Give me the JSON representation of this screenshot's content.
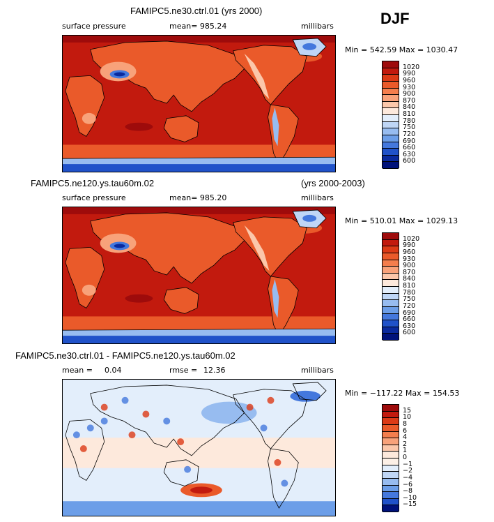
{
  "season": "DJF",
  "panels": [
    {
      "title": "FAMIPC5.ne30.ctrl.01 (yrs 2000)",
      "title_right": "",
      "left_label": "surface pressure",
      "center_label": "mean= 985.24",
      "right_label": "millibars",
      "minmax": "Min = 542.59 Max = 1030.47",
      "colorbar_levels": [
        "1020",
        "990",
        "960",
        "930",
        "900",
        "870",
        "840",
        "810",
        "780",
        "750",
        "720",
        "690",
        "660",
        "630",
        "600"
      ]
    },
    {
      "title": "FAMIPC5.ne120.ys.tau60m.02",
      "title_right": "(yrs 2000-2003)",
      "left_label": "surface pressure",
      "center_label": "mean= 985.20",
      "right_label": "millibars",
      "minmax": "Min = 510.01 Max = 1029.13",
      "colorbar_levels": [
        "1020",
        "990",
        "960",
        "930",
        "900",
        "870",
        "840",
        "810",
        "780",
        "750",
        "720",
        "690",
        "660",
        "630",
        "600"
      ]
    },
    {
      "title": "FAMIPC5.ne30.ctrl.01 - FAMIPC5.ne120.ys.tau60m.02",
      "title_right": "",
      "left_label": "mean =",
      "left_value": "0.04",
      "center_label": "rmse =",
      "center_value": "12.36",
      "right_label": "millibars",
      "minmax": "Min = −117.22 Max = 154.53",
      "colorbar_levels": [
        "15",
        "10",
        "8",
        "6",
        "4",
        "2",
        "1",
        "0",
        "−1",
        "−2",
        "−4",
        "−6",
        "−8",
        "−10",
        "−15"
      ]
    }
  ],
  "chart_data": [
    {
      "type": "heatmap",
      "title": "FAMIPC5.ne30.ctrl.01 (yrs 2000)",
      "variable": "surface pressure",
      "units": "millibars",
      "mean": 985.24,
      "min": 542.59,
      "max": 1030.47,
      "contour_levels": [
        600,
        630,
        660,
        690,
        720,
        750,
        780,
        810,
        840,
        870,
        900,
        930,
        960,
        990,
        1020
      ]
    },
    {
      "type": "heatmap",
      "title": "FAMIPC5.ne120.ys.tau60m.02 (yrs 2000-2003)",
      "variable": "surface pressure",
      "units": "millibars",
      "mean": 985.2,
      "min": 510.01,
      "max": 1029.13,
      "contour_levels": [
        600,
        630,
        660,
        690,
        720,
        750,
        780,
        810,
        840,
        870,
        900,
        930,
        960,
        990,
        1020
      ]
    },
    {
      "type": "heatmap",
      "title": "FAMIPC5.ne30.ctrl.01 - FAMIPC5.ne120.ys.tau60m.02",
      "units": "millibars",
      "mean": 0.04,
      "rmse": 12.36,
      "min": -117.22,
      "max": 154.53,
      "contour_levels": [
        -15,
        -10,
        -8,
        -6,
        -4,
        -2,
        -1,
        0,
        1,
        2,
        4,
        6,
        8,
        10,
        15
      ]
    }
  ],
  "colors": {
    "abs_scale": [
      "#9e0b0b",
      "#c21a0e",
      "#dc3a16",
      "#ea5a2a",
      "#f47e4d",
      "#f8a27a",
      "#fbc7aa",
      "#fde9dc",
      "#e3eefb",
      "#bfd6f6",
      "#97bcf0",
      "#6c9ee8",
      "#4478dd",
      "#2052c9",
      "#0a2a9e",
      "#00127a"
    ],
    "diff_scale": [
      "#9e0b0b",
      "#c21a0e",
      "#dc3a16",
      "#ea5a2a",
      "#f47e4d",
      "#f8a27a",
      "#fbc7aa",
      "#fde9dc",
      "#fdf0e6",
      "#e3eefb",
      "#bfd6f6",
      "#97bcf0",
      "#6c9ee8",
      "#4478dd",
      "#2052c9",
      "#00127a"
    ]
  }
}
